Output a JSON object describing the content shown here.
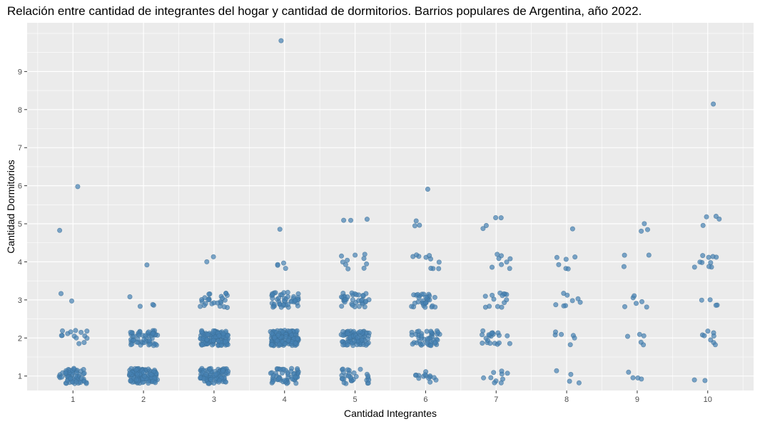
{
  "chart_data": {
    "type": "scatter",
    "title": "Relación entre cantidad de integrantes del hogar y cantidad de dormitorios. Barrios populares de Argentina, año 2022.",
    "xlabel": "Cantidad Integrantes",
    "ylabel": "Cantidad Dormitorios",
    "x_ticks": [
      1,
      2,
      3,
      4,
      5,
      6,
      7,
      8,
      9,
      10
    ],
    "y_ticks": [
      1,
      2,
      3,
      4,
      5,
      6,
      7,
      8,
      9
    ],
    "xlim": [
      0.35,
      10.65
    ],
    "ylim": [
      0.62,
      10.28
    ],
    "grid": true,
    "jitter": true,
    "point_color": "#4682B4",
    "panel_background": "#EBEBEB",
    "grid_color": "#FFFFFF",
    "counts": [
      [
        60,
        14,
        2,
        0,
        1,
        1,
        0,
        0,
        0,
        0
      ],
      [
        120,
        55,
        4,
        1,
        0,
        0,
        0,
        0,
        0,
        0
      ],
      [
        90,
        110,
        25,
        2,
        0,
        0,
        0,
        0,
        0,
        0
      ],
      [
        55,
        140,
        45,
        4,
        1,
        0,
        0,
        0,
        0,
        1
      ],
      [
        30,
        80,
        35,
        10,
        3,
        0,
        0,
        0,
        0,
        0
      ],
      [
        14,
        45,
        30,
        10,
        3,
        1,
        0,
        0,
        0,
        0
      ],
      [
        10,
        20,
        14,
        8,
        4,
        0,
        0,
        0,
        0,
        0
      ],
      [
        4,
        6,
        8,
        6,
        1,
        0,
        0,
        0,
        0,
        0
      ],
      [
        4,
        5,
        6,
        3,
        3,
        0,
        0,
        0,
        0,
        0
      ],
      [
        2,
        8,
        4,
        10,
        4,
        0,
        0,
        1,
        0,
        0
      ]
    ]
  }
}
